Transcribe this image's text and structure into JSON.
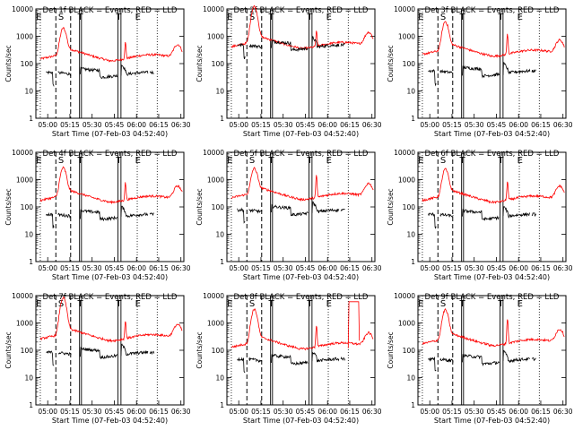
{
  "chart_data": {
    "type": "line",
    "ylabel": "Counts/sec",
    "xlabel": "Start Time (07-Feb-03 04:52:40)",
    "x_tick_labels": [
      "05:00",
      "05:15",
      "05:30",
      "05:45",
      "06:00",
      "06:15",
      "06:30"
    ],
    "x_ticks_minutes_since_0500": [
      0,
      15,
      30,
      45,
      60,
      75,
      90
    ],
    "x_range_minutes_since_0500": [
      -8,
      92
    ],
    "y_tick_labels": [
      "1",
      "10",
      "100",
      "1000",
      "10000"
    ],
    "y_scale": "log",
    "ylim": [
      1,
      10000
    ],
    "vline_labels": [
      "E",
      "S",
      "T",
      "T",
      "E"
    ],
    "colors": {
      "events": "#000000",
      "lld": "#ff0000"
    },
    "panels": [
      {
        "title": "Det 1f BLACK = Events, RED = LLD",
        "lld_peak": 1800,
        "lld_base": 170,
        "events_base": 40,
        "second_peak": 450,
        "spike_bg": 0
      },
      {
        "title": "Det 2f BLACK = Events, RED = LLD",
        "lld_peak": 12000,
        "lld_base": 480,
        "events_base": 400,
        "second_peak": 1100,
        "spike_bg": 0
      },
      {
        "title": "Det 3f BLACK = Events, RED = LLD",
        "lld_peak": 3200,
        "lld_base": 250,
        "events_base": 45,
        "second_peak": 1000,
        "spike_bg": 0
      },
      {
        "title": "Det 4f BLACK = Events, RED = LLD",
        "lld_peak": 2500,
        "lld_base": 200,
        "events_base": 45,
        "second_peak": 600,
        "spike_bg": 0
      },
      {
        "title": "Det 5f BLACK = Events, RED = LLD",
        "lld_peak": 2300,
        "lld_base": 250,
        "events_base": 65,
        "second_peak": 1200,
        "spike_bg": 0
      },
      {
        "title": "Det 6f BLACK = Events, RED = LLD",
        "lld_peak": 2200,
        "lld_base": 200,
        "events_base": 45,
        "second_peak": 700,
        "spike_bg": 0
      },
      {
        "title": "Det 7f BLACK = Events, RED = LLD",
        "lld_peak": 8000,
        "lld_base": 300,
        "events_base": 70,
        "second_peak": 900,
        "spike_bg": 0
      },
      {
        "title": "Det 8f BLACK = Events, RED = LLD",
        "lld_peak": 3000,
        "lld_base": 150,
        "events_base": 40,
        "second_peak": 700,
        "spike_bg": 6000
      },
      {
        "title": "Det 9f BLACK = Events, RED = LLD",
        "lld_peak": 2800,
        "lld_base": 200,
        "events_base": 40,
        "second_peak": 1300,
        "spike_bg": 0
      }
    ]
  }
}
